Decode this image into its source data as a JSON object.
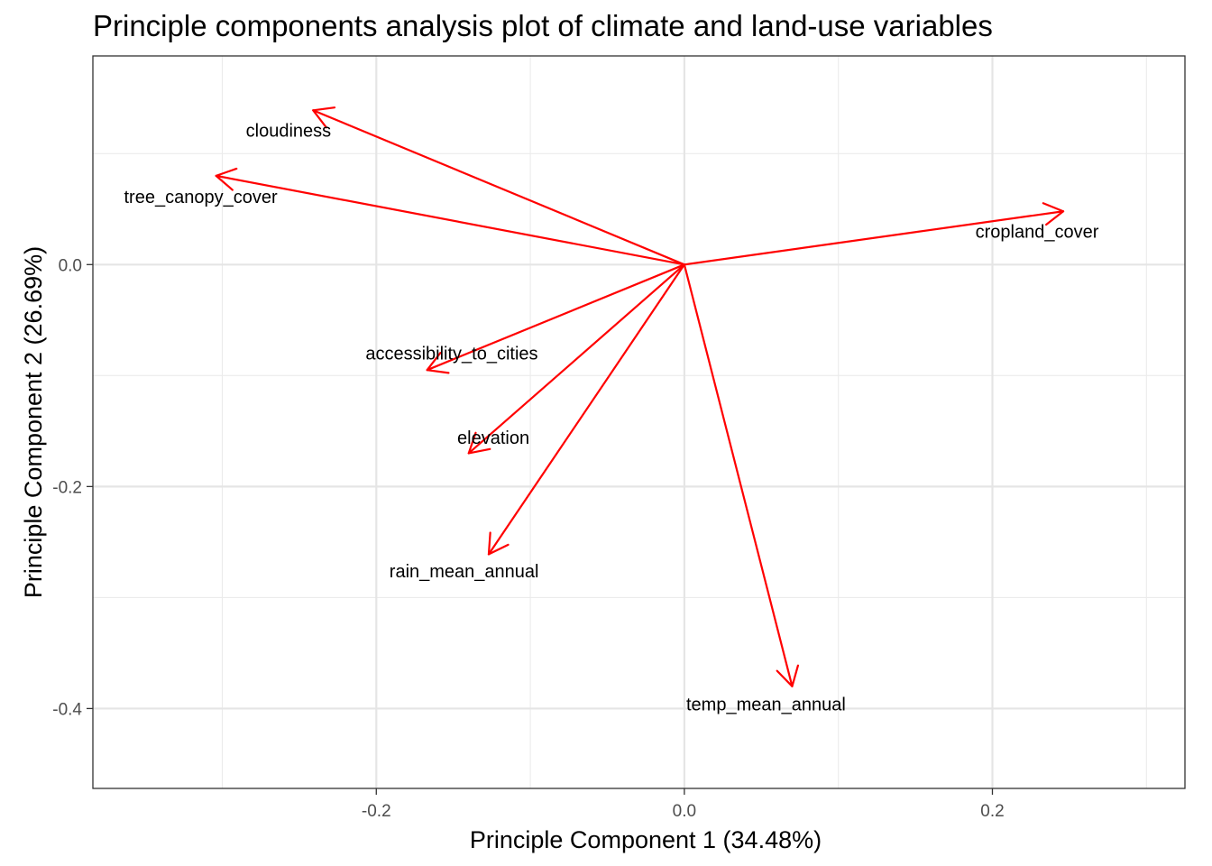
{
  "chart_data": {
    "type": "scatter",
    "subtype": "pca-biplot-loadings",
    "title": "Principle components analysis plot of climate and land-use variables",
    "xlabel": "Principle Component 1 (34.48%)",
    "ylabel": "Principle Component 2 (26.69%)",
    "xlim": [
      -0.384,
      0.325
    ],
    "ylim": [
      -0.472,
      0.188
    ],
    "x_ticks": [
      -0.2,
      0.0,
      0.2
    ],
    "x_tick_labels": [
      "-0.2",
      "0.0",
      "0.2"
    ],
    "y_ticks": [
      -0.4,
      -0.2,
      0.0
    ],
    "y_tick_labels": [
      "-0.4",
      "-0.2",
      "0.0"
    ],
    "x_minor_ticks": [
      -0.3,
      -0.1,
      0.1,
      0.3
    ],
    "y_minor_ticks": [
      -0.3,
      -0.1,
      0.1
    ],
    "grid": true,
    "origin": [
      0,
      0
    ],
    "arrow_color": "#ff0000",
    "label_color": "#000000",
    "loadings": [
      {
        "name": "cloudiness",
        "x": -0.241,
        "y": 0.139,
        "label_x": -0.257,
        "label_y": 0.121
      },
      {
        "name": "tree_canopy_cover",
        "x": -0.304,
        "y": 0.08,
        "label_x": -0.314,
        "label_y": 0.061
      },
      {
        "name": "cropland_cover",
        "x": 0.246,
        "y": 0.048,
        "label_x": 0.229,
        "label_y": 0.03
      },
      {
        "name": "accessibility_to_cities",
        "x": -0.167,
        "y": -0.095,
        "label_x": -0.151,
        "label_y": -0.08
      },
      {
        "name": "elevation",
        "x": -0.14,
        "y": -0.17,
        "label_x": -0.124,
        "label_y": -0.156
      },
      {
        "name": "rain_mean_annual",
        "x": -0.127,
        "y": -0.261,
        "label_x": -0.143,
        "label_y": -0.276
      },
      {
        "name": "temp_mean_annual",
        "x": 0.07,
        "y": -0.38,
        "label_x": 0.053,
        "label_y": -0.396
      }
    ]
  }
}
